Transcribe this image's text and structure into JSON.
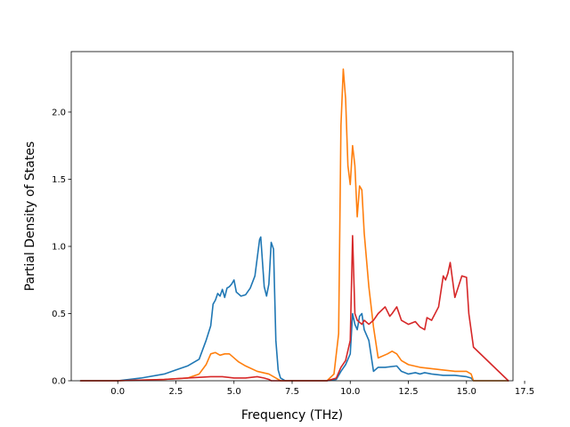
{
  "chart_data": {
    "type": "line",
    "title": "",
    "xlabel": "Frequency (THz)",
    "ylabel": "Partial Density of States",
    "xlim": [
      -2.0,
      17.0
    ],
    "ylim": [
      0.0,
      2.45
    ],
    "xticks": [
      0.0,
      2.5,
      5.0,
      7.5,
      10.0,
      12.5,
      15.0,
      17.5
    ],
    "xtick_labels": [
      "0.0",
      "2.5",
      "5.0",
      "7.5",
      "10.0",
      "12.5",
      "15.0",
      "17.5"
    ],
    "yticks": [
      0.0,
      0.5,
      1.0,
      1.5,
      2.0
    ],
    "ytick_labels": [
      "0.0",
      "0.5",
      "1.0",
      "1.5",
      "2.0"
    ],
    "grid": false,
    "legend": "none",
    "series": [
      {
        "color": "#1f77b4",
        "x": [
          -1.6,
          0.0,
          1.0,
          2.0,
          2.5,
          3.0,
          3.5,
          3.8,
          4.0,
          4.1,
          4.2,
          4.3,
          4.4,
          4.5,
          4.6,
          4.7,
          4.8,
          4.9,
          5.0,
          5.1,
          5.3,
          5.5,
          5.7,
          5.9,
          6.1,
          6.15,
          6.3,
          6.4,
          6.5,
          6.6,
          6.7,
          6.8,
          6.9,
          7.0,
          7.2,
          8.0,
          9.0,
          9.4,
          9.6,
          9.8,
          10.0,
          10.1,
          10.2,
          10.3,
          10.4,
          10.5,
          10.6,
          10.8,
          11.0,
          11.2,
          11.5,
          12.0,
          12.2,
          12.5,
          12.8,
          13.0,
          13.2,
          13.5,
          14.0,
          14.5,
          15.0,
          15.2,
          15.3,
          16.8
        ],
        "y": [
          0.0,
          0.0,
          0.02,
          0.05,
          0.08,
          0.11,
          0.16,
          0.3,
          0.41,
          0.57,
          0.6,
          0.65,
          0.63,
          0.68,
          0.62,
          0.69,
          0.7,
          0.72,
          0.75,
          0.66,
          0.63,
          0.64,
          0.69,
          0.78,
          1.05,
          1.07,
          0.7,
          0.63,
          0.72,
          1.03,
          0.98,
          0.3,
          0.08,
          0.02,
          0.0,
          0.0,
          0.0,
          0.01,
          0.07,
          0.12,
          0.2,
          0.5,
          0.42,
          0.38,
          0.48,
          0.5,
          0.38,
          0.3,
          0.07,
          0.1,
          0.1,
          0.11,
          0.07,
          0.05,
          0.06,
          0.05,
          0.06,
          0.05,
          0.04,
          0.04,
          0.03,
          0.02,
          0.0,
          0.0
        ]
      },
      {
        "color": "#ff7f0e",
        "x": [
          -1.6,
          0.0,
          2.0,
          3.0,
          3.5,
          3.8,
          4.0,
          4.2,
          4.4,
          4.6,
          4.8,
          5.0,
          5.2,
          5.5,
          6.0,
          6.5,
          6.8,
          7.0,
          7.5,
          9.0,
          9.3,
          9.5,
          9.6,
          9.7,
          9.8,
          9.9,
          10.0,
          10.1,
          10.2,
          10.3,
          10.4,
          10.5,
          10.6,
          10.8,
          11.0,
          11.2,
          11.6,
          11.8,
          12.0,
          12.2,
          12.5,
          13.0,
          13.5,
          14.0,
          14.5,
          15.0,
          15.2,
          15.3,
          16.8
        ],
        "y": [
          0.0,
          0.0,
          0.01,
          0.02,
          0.05,
          0.12,
          0.2,
          0.21,
          0.19,
          0.2,
          0.2,
          0.17,
          0.14,
          0.11,
          0.07,
          0.05,
          0.02,
          0.0,
          0.0,
          0.0,
          0.05,
          0.35,
          1.9,
          2.32,
          2.1,
          1.6,
          1.46,
          1.75,
          1.6,
          1.22,
          1.45,
          1.42,
          1.1,
          0.7,
          0.4,
          0.17,
          0.2,
          0.22,
          0.2,
          0.15,
          0.12,
          0.1,
          0.09,
          0.08,
          0.07,
          0.07,
          0.05,
          0.0,
          0.0
        ]
      },
      {
        "color": "#d62728",
        "x": [
          -1.6,
          0.0,
          2.0,
          3.0,
          4.0,
          4.5,
          5.0,
          5.5,
          6.0,
          6.3,
          6.5,
          6.6,
          7.0,
          9.0,
          9.4,
          9.6,
          9.8,
          10.0,
          10.1,
          10.2,
          10.3,
          10.5,
          10.6,
          10.8,
          11.0,
          11.2,
          11.5,
          11.7,
          11.8,
          12.0,
          12.2,
          12.5,
          12.8,
          13.0,
          13.2,
          13.3,
          13.5,
          13.8,
          14.0,
          14.1,
          14.2,
          14.3,
          14.5,
          14.8,
          15.0,
          15.1,
          15.3,
          16.8
        ],
        "y": [
          0.0,
          0.0,
          0.01,
          0.02,
          0.03,
          0.03,
          0.02,
          0.02,
          0.03,
          0.02,
          0.01,
          0.0,
          0.0,
          0.0,
          0.02,
          0.1,
          0.15,
          0.3,
          1.08,
          0.5,
          0.45,
          0.42,
          0.45,
          0.42,
          0.45,
          0.5,
          0.55,
          0.48,
          0.5,
          0.55,
          0.45,
          0.42,
          0.44,
          0.4,
          0.38,
          0.47,
          0.45,
          0.55,
          0.78,
          0.75,
          0.8,
          0.88,
          0.62,
          0.78,
          0.77,
          0.5,
          0.25,
          0.0
        ]
      }
    ]
  }
}
